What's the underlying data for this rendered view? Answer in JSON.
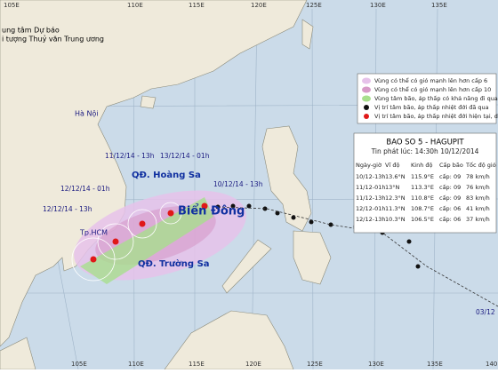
{
  "header": {
    "line1": "ung tâm Dự báo",
    "line2": "i tượng Thuỷ văn Trung ương"
  },
  "lon_top": [
    "105E",
    "110E",
    "115E",
    "120E",
    "125E",
    "130E",
    "135E"
  ],
  "lon_bottom": [
    "105E",
    "110E",
    "115E",
    "120E",
    "125E",
    "130E",
    "135E",
    "140"
  ],
  "places": {
    "hanoi": "Hà Nội",
    "hcm": "Tp.HCM",
    "hoang_sa": "QĐ. Hoàng Sa",
    "truong_sa": "QĐ. Trường Sa",
    "bien_dong": "Biển Đông"
  },
  "time_labels": [
    "10/12/14 - 13h",
    "11/12/14 - 13h",
    "13/12/14 - 01h",
    "12/12/14 - 01h",
    "12/12/14 - 13h",
    "03/12"
  ],
  "legend": [
    "Vùng có thể có gió mạnh lên hơn cấp 6",
    "Vùng có thể có gió mạnh lên hơn cấp 10",
    "Vùng tâm bão, áp thấp có khả năng đi qua",
    "Vị trí tâm bão, áp thấp nhiệt đới đã qua",
    "Vị trí tâm bão, áp thấp nhiệt đới hiện tại, dự báo"
  ],
  "info": {
    "title": "BAO SO 5 - HAGUPIT",
    "subtitle": "Tin phát lúc: 14:30h 10/12/2014",
    "columns": [
      "Ngày-giờ",
      "Vĩ độ",
      "Kinh độ",
      "Cấp bão",
      "Tốc độ gió"
    ],
    "rows": [
      [
        "10/12-13h",
        "13.6°N",
        "115.9°E",
        "cấp: 09",
        "78 km/h"
      ],
      [
        "11/12-01h",
        "13°N",
        "113.3°E",
        "cấp: 09",
        "76 km/h"
      ],
      [
        "11/12-13h",
        "12.3°N",
        "110.8°E",
        "cấp: 09",
        "83 km/h"
      ],
      [
        "12/12-01h",
        "11.3°N",
        "108.7°E",
        "cấp: 06",
        "41 km/h"
      ],
      [
        "12/12-13h",
        "10.3°N",
        "106.5°E",
        "cấp: 06",
        "37 km/h"
      ]
    ]
  }
}
